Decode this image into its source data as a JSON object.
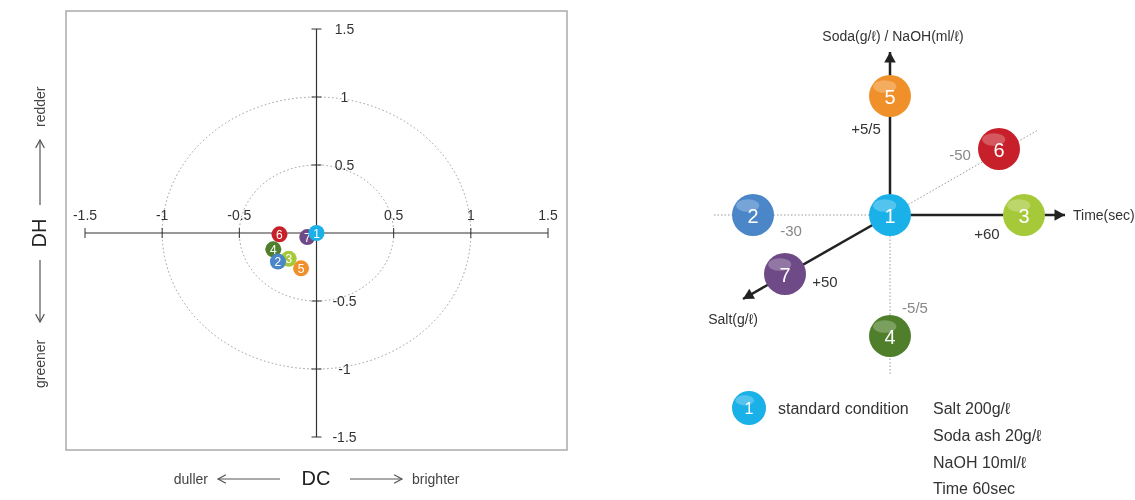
{
  "chart_data": [
    {
      "type": "scatter",
      "xlabel": "DC",
      "ylabel": "DH",
      "xlim": [
        -1.5,
        1.5
      ],
      "ylim": [
        -1.5,
        1.5
      ],
      "xticks": [
        -1.5,
        -1,
        -0.5,
        0.5,
        1,
        1.5
      ],
      "yticks": [
        -1.5,
        -1,
        -0.5,
        0.5,
        1,
        1.5
      ],
      "marker": "circle",
      "annotations": [
        "duller",
        "brighter",
        "redder",
        "greener"
      ],
      "series": [
        {
          "name": "1",
          "color": "#1ab0e8",
          "x": [
            0
          ],
          "values": [
            0
          ]
        },
        {
          "name": "2",
          "color": "#4a86c8",
          "x": [
            -0.25
          ],
          "values": [
            -0.21
          ]
        },
        {
          "name": "3",
          "color": "#a6c93a",
          "x": [
            -0.18
          ],
          "values": [
            -0.19
          ]
        },
        {
          "name": "4",
          "color": "#4f7f2a",
          "x": [
            -0.28
          ],
          "values": [
            -0.12
          ]
        },
        {
          "name": "5",
          "color": "#f0902a",
          "x": [
            -0.1
          ],
          "values": [
            -0.26
          ]
        },
        {
          "name": "6",
          "color": "#c8202a",
          "x": [
            -0.24
          ],
          "values": [
            -0.01
          ]
        },
        {
          "name": "7",
          "color": "#6e4a86",
          "x": [
            -0.06
          ],
          "values": [
            -0.03
          ]
        }
      ]
    },
    {
      "type": "other",
      "categories": [
        "1",
        "2",
        "3",
        "4",
        "5",
        "6",
        "7"
      ],
      "colors": [
        "#1ab0e8",
        "#4a86c8",
        "#a6c93a",
        "#4f7f2a",
        "#f0902a",
        "#c8202a",
        "#6e4a86"
      ],
      "annotations": [
        "Soda(g/ℓ) / NaOH(ml/ℓ)",
        "+5/5",
        "-50",
        "-30",
        "Time(sec)",
        "+60",
        "+50",
        "Salt(g/ℓ)",
        "-5/5",
        "1",
        "standard condition",
        "Salt 200g/ℓ",
        "Soda ash 20g/ℓ",
        "NaOH 10ml/ℓ",
        "Time 60sec"
      ]
    }
  ]
}
